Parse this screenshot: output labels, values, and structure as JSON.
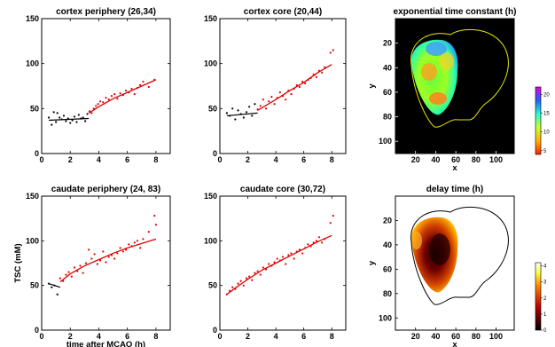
{
  "chart_data": [
    {
      "type": "scatter",
      "title": "cortex periphery (26,34)",
      "xlabel": "",
      "ylabel": "",
      "xlim": [
        0,
        9
      ],
      "ylim": [
        0,
        150
      ],
      "xticks": [
        "0",
        "2",
        "4",
        "6",
        "8"
      ],
      "yticks": [
        "0",
        "50",
        "100",
        "150"
      ],
      "grid": false,
      "points": {
        "x": [
          0.5,
          0.7,
          0.85,
          1.0,
          1.1,
          1.25,
          1.4,
          1.55,
          1.7,
          1.85,
          2.0,
          2.15,
          2.3,
          2.45,
          2.6,
          2.75,
          2.9,
          3.05,
          3.2,
          3.35,
          3.5,
          3.65,
          3.8,
          3.95,
          4.1,
          4.3,
          4.5,
          4.7,
          4.9,
          5.1,
          5.3,
          5.5,
          5.7,
          5.9,
          6.1,
          6.3,
          6.5,
          6.7,
          6.9,
          7.1,
          7.5,
          7.9
        ],
        "y": [
          40,
          32,
          46,
          35,
          45,
          40,
          38,
          42,
          36,
          39,
          34,
          37,
          41,
          35,
          43,
          39,
          40,
          36,
          44,
          47,
          45,
          50,
          53,
          55,
          58,
          57,
          62,
          60,
          64,
          66,
          61,
          67,
          65,
          70,
          68,
          72,
          66,
          73,
          76,
          80,
          74,
          82
        ]
      },
      "fit": {
        "x": [
          0.5,
          3.3,
          3.3,
          4,
          5,
          6,
          7,
          8
        ],
        "y": [
          37,
          39,
          45,
          52,
          61,
          68,
          75,
          82
        ]
      },
      "fit_break_x": 3.3
    },
    {
      "type": "scatter",
      "title": "cortex core (20,44)",
      "xlabel": "",
      "ylabel": "",
      "xlim": [
        0,
        9
      ],
      "ylim": [
        0,
        150
      ],
      "xticks": [
        "0",
        "2",
        "4",
        "6",
        "8"
      ],
      "yticks": [
        "0",
        "50",
        "100",
        "150"
      ],
      "grid": false,
      "points": {
        "x": [
          0.5,
          0.7,
          0.9,
          1.1,
          1.3,
          1.5,
          1.7,
          1.9,
          2.1,
          2.3,
          2.5,
          2.7,
          2.9,
          3.1,
          3.3,
          3.5,
          3.7,
          3.9,
          4.1,
          4.3,
          4.5,
          4.7,
          4.9,
          5.1,
          5.3,
          5.5,
          5.7,
          5.9,
          6.1,
          6.3,
          6.5,
          6.7,
          6.9,
          7.1,
          7.3,
          7.5,
          7.9,
          8.1
        ],
        "y": [
          45,
          42,
          50,
          38,
          48,
          44,
          40,
          46,
          52,
          42,
          55,
          49,
          53,
          60,
          50,
          58,
          63,
          55,
          62,
          68,
          64,
          60,
          70,
          66,
          72,
          76,
          74,
          80,
          78,
          82,
          84,
          88,
          85,
          92,
          90,
          96,
          112,
          115
        ]
      },
      "fit": {
        "x": [
          0.5,
          2.7,
          2.7,
          4,
          5,
          6,
          7,
          8
        ],
        "y": [
          42,
          45,
          48,
          60,
          70,
          79,
          90,
          99
        ]
      },
      "fit_break_x": 2.7
    },
    {
      "type": "heatmap",
      "title": "exponential time constant (h)",
      "xlabel": "x",
      "ylabel": "y",
      "xticks": [
        "20",
        "40",
        "60",
        "80",
        "100"
      ],
      "yticks": [
        "20",
        "40",
        "60",
        "80",
        "100"
      ],
      "colorbar": {
        "ticks": [
          "5",
          "10",
          "15",
          "20"
        ],
        "range": [
          4,
          22
        ],
        "colormap": "jet-reversed"
      },
      "brain_outline_color": "#e8e800"
    },
    {
      "type": "scatter",
      "title": "caudate periphery (24, 83)",
      "xlabel": "time after MCAO (h)",
      "ylabel": "TSC (mM)",
      "xlim": [
        0,
        9
      ],
      "ylim": [
        0,
        150
      ],
      "xticks": [
        "0",
        "2",
        "4",
        "6",
        "8"
      ],
      "yticks": [
        "0",
        "50",
        "100",
        "150"
      ],
      "grid": false,
      "points": {
        "x": [
          0.5,
          0.7,
          0.9,
          1.1,
          1.3,
          1.5,
          1.7,
          1.9,
          2.1,
          2.3,
          2.5,
          2.7,
          2.9,
          3.1,
          3.3,
          3.5,
          3.7,
          3.9,
          4.1,
          4.3,
          4.5,
          4.7,
          4.9,
          5.1,
          5.3,
          5.5,
          5.7,
          5.9,
          6.1,
          6.3,
          6.5,
          6.7,
          6.9,
          7.1,
          7.5,
          7.9,
          8.0
        ],
        "y": [
          52,
          48,
          50,
          40,
          58,
          55,
          62,
          65,
          60,
          70,
          66,
          72,
          64,
          75,
          90,
          80,
          85,
          74,
          78,
          88,
          76,
          82,
          84,
          80,
          86,
          92,
          88,
          90,
          96,
          94,
          98,
          100,
          92,
          102,
          110,
          128,
          118
        ]
      },
      "fit": {
        "x": [
          0.5,
          1.3,
          1.3,
          2,
          3,
          4,
          5,
          6,
          7,
          8
        ],
        "y": [
          52,
          48,
          54,
          63,
          72,
          79,
          86,
          92,
          97,
          102
        ]
      },
      "fit_break_x": 1.3
    },
    {
      "type": "scatter",
      "title": "caudate core (30,72)",
      "xlabel": "",
      "ylabel": "",
      "xlim": [
        0,
        9
      ],
      "ylim": [
        0,
        150
      ],
      "xticks": [
        "0",
        "2",
        "4",
        "6",
        "8"
      ],
      "yticks": [
        "0",
        "50",
        "100",
        "150"
      ],
      "grid": false,
      "points": {
        "x": [
          0.5,
          0.7,
          0.9,
          1.1,
          1.3,
          1.5,
          1.7,
          1.9,
          2.1,
          2.3,
          2.5,
          2.7,
          2.9,
          3.1,
          3.3,
          3.5,
          3.7,
          3.9,
          4.1,
          4.3,
          4.5,
          4.7,
          4.9,
          5.1,
          5.3,
          5.5,
          5.7,
          5.9,
          6.1,
          6.3,
          6.5,
          6.7,
          6.9,
          7.1,
          7.3,
          7.5,
          7.9,
          8.1
        ],
        "y": [
          40,
          44,
          48,
          46,
          52,
          55,
          50,
          58,
          60,
          56,
          64,
          66,
          62,
          70,
          68,
          74,
          72,
          76,
          80,
          78,
          82,
          74,
          84,
          86,
          80,
          88,
          90,
          86,
          92,
          96,
          94,
          98,
          100,
          104,
          98,
          102,
          120,
          128
        ]
      },
      "fit": {
        "x": [
          0.5,
          1,
          2,
          3,
          4,
          5,
          6,
          7,
          8
        ],
        "y": [
          40,
          46,
          57,
          67,
          75,
          83,
          91,
          99,
          106
        ]
      },
      "fit_break_x": null
    },
    {
      "type": "heatmap",
      "title": "delay time (h)",
      "xlabel": "x",
      "ylabel": "y",
      "xticks": [
        "20",
        "40",
        "60",
        "80",
        "100"
      ],
      "yticks": [
        "20",
        "40",
        "60",
        "80",
        "100"
      ],
      "colorbar": {
        "ticks": [
          "0",
          "1",
          "2",
          "3",
          "4"
        ],
        "range": [
          0,
          4.2
        ],
        "colormap": "hot"
      },
      "brain_outline_color": "#000000"
    }
  ]
}
